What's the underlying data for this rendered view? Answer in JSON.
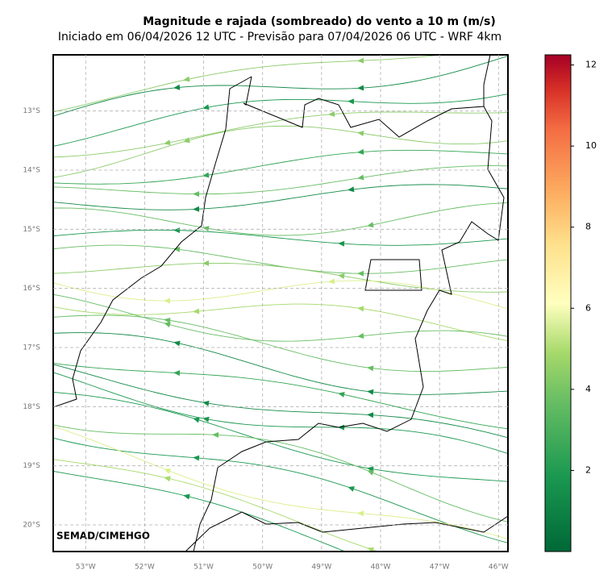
{
  "header": {
    "title": "Magnitude e rajada (sombreado) do vento a 10 m (m/s)",
    "subtitle": "Iniciado em 06/04/2026 12 UTC - Previsão para 07/04/2026 06 UTC - WRF 4km"
  },
  "map": {
    "xlim": [
      -53.55,
      -45.84
    ],
    "ylim": [
      -20.45,
      -12.05
    ],
    "xticks": [
      {
        "value": -53,
        "label": "53°W"
      },
      {
        "value": -52,
        "label": "52°W"
      },
      {
        "value": -51,
        "label": "51°W"
      },
      {
        "value": -50,
        "label": "50°W"
      },
      {
        "value": -49,
        "label": "49°W"
      },
      {
        "value": -48,
        "label": "48°W"
      },
      {
        "value": -47,
        "label": "47°W"
      },
      {
        "value": -46,
        "label": "46°W"
      }
    ],
    "yticks": [
      {
        "value": -13,
        "label": "13°S"
      },
      {
        "value": -14,
        "label": "14°S"
      },
      {
        "value": -15,
        "label": "15°S"
      },
      {
        "value": -16,
        "label": "16°S"
      },
      {
        "value": -17,
        "label": "17°S"
      },
      {
        "value": -18,
        "label": "18°S"
      },
      {
        "value": -19,
        "label": "19°S"
      },
      {
        "value": -20,
        "label": "20°S"
      }
    ],
    "grid": true,
    "credit": "SEMAD/CIMEHGO"
  },
  "colorbar": {
    "lim": [
      0,
      12.25
    ],
    "ticks": [
      2,
      4,
      6,
      8,
      10,
      12
    ]
  }
}
